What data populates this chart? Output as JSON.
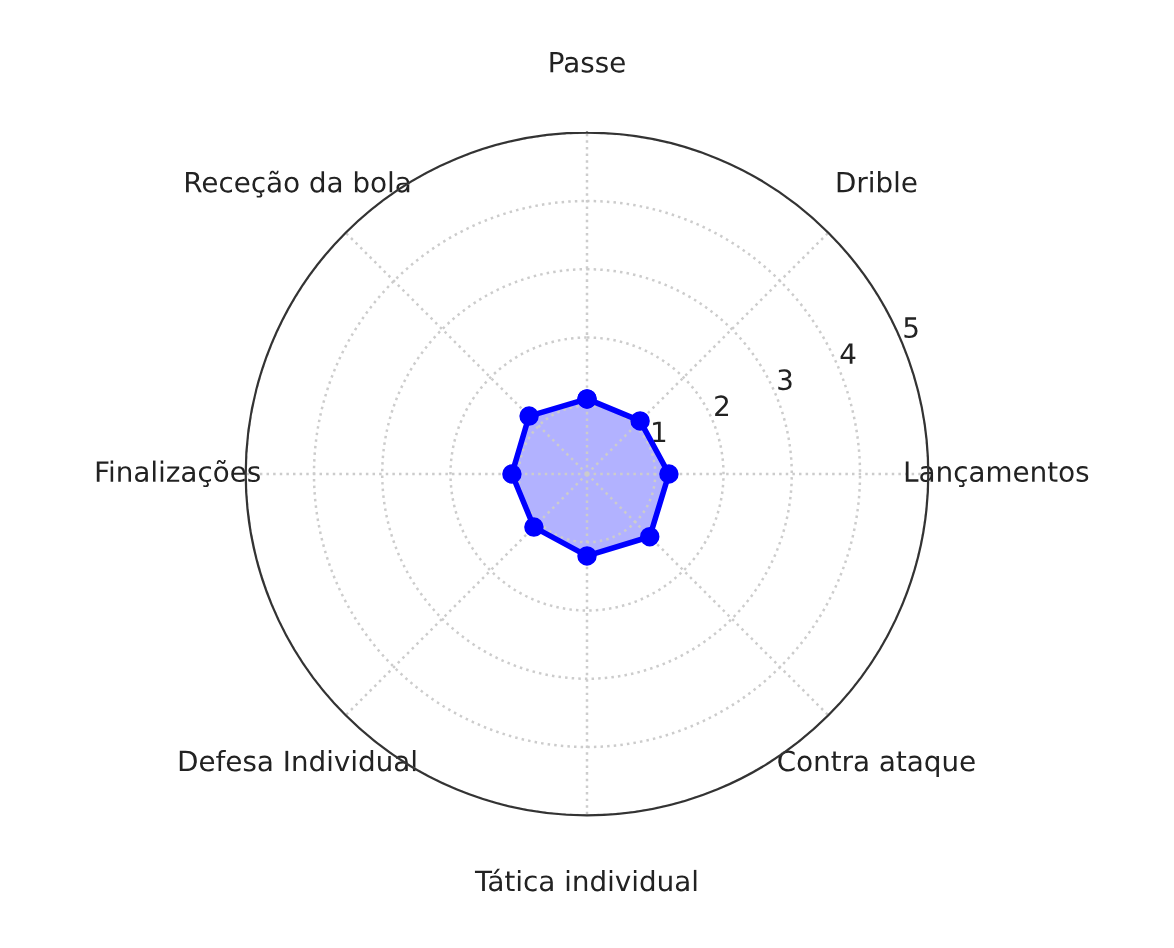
{
  "chart_data": {
    "type": "radar",
    "categories": [
      "Passe",
      "Drible",
      "Lançamentos",
      "Contra ataque",
      "Tática individual",
      "Defesa Individual",
      "Finalizações",
      "Receção da bola"
    ],
    "series": [
      {
        "color": "#0000ff",
        "values": [
          1.1,
          1.1,
          1.2,
          1.3,
          1.2,
          1.1,
          1.1,
          1.2
        ]
      }
    ],
    "ylim": [
      0,
      5
    ],
    "yticks": [
      1,
      2,
      3,
      4,
      5
    ],
    "grid": true,
    "marker": "circle",
    "line_style": "solid"
  }
}
